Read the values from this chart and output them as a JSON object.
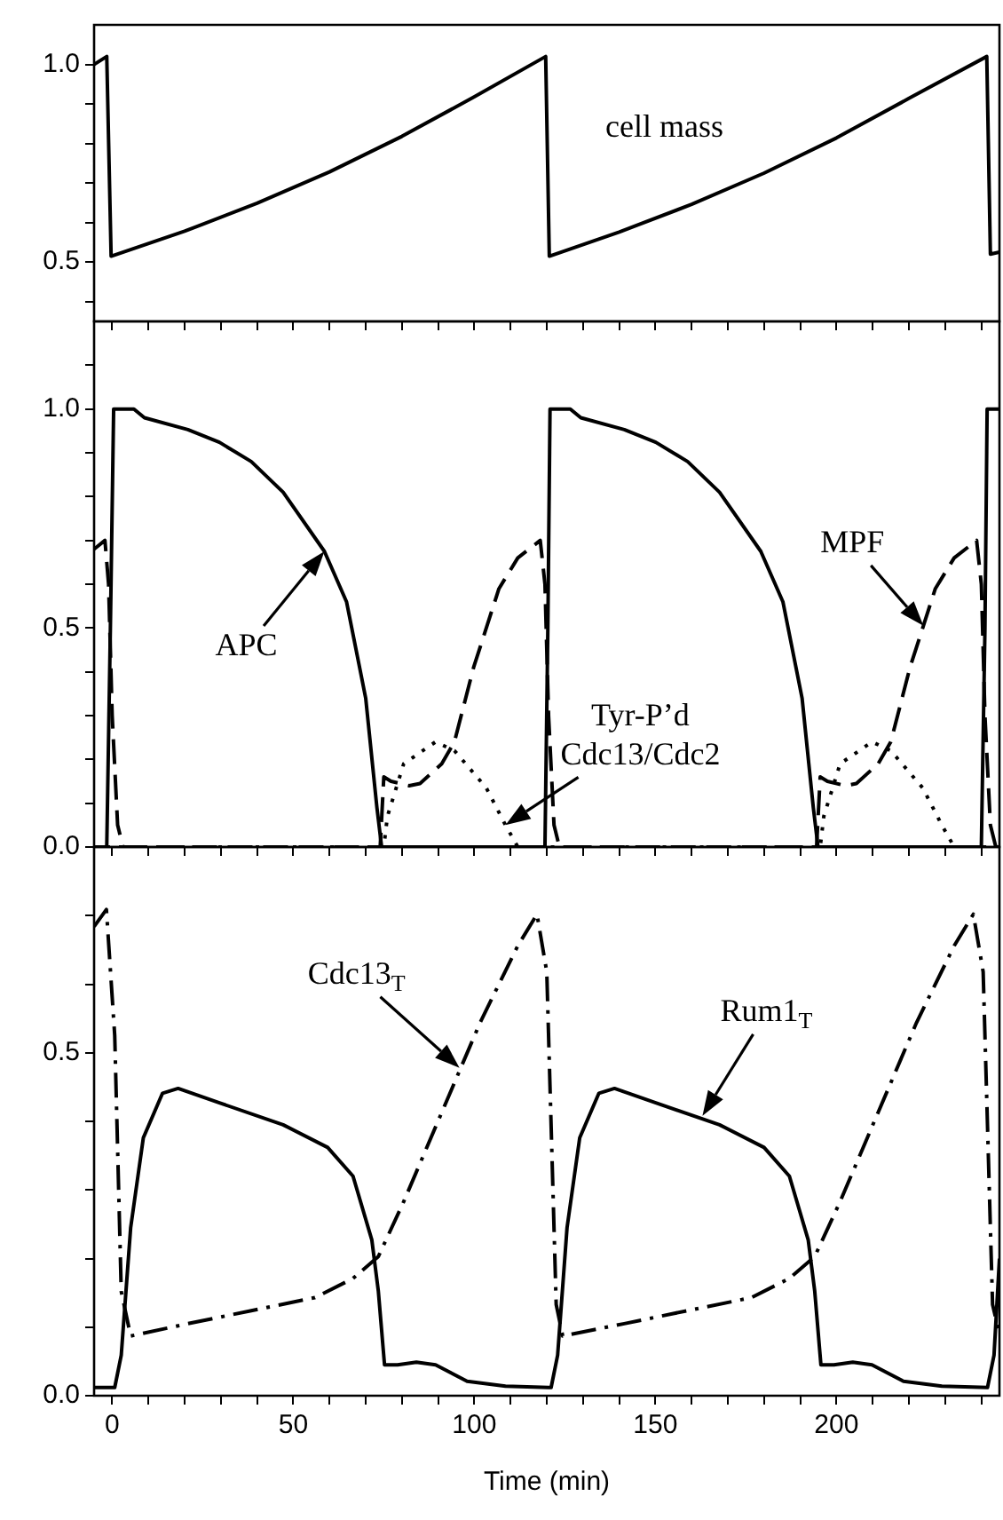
{
  "chart_data": [
    {
      "type": "line",
      "tick_labels": "y",
      "xlim": [
        -5,
        245
      ],
      "xticks": [
        0,
        50,
        100,
        150,
        200,
        {
          "value": 10,
          "label": null
        },
        {
          "value": 20,
          "label": null
        },
        {
          "value": 30,
          "label": null
        },
        {
          "value": 40,
          "label": null
        },
        {
          "value": 60,
          "label": null
        },
        {
          "value": 70,
          "label": null
        },
        {
          "value": 80,
          "label": null
        },
        {
          "value": 90,
          "label": null
        },
        {
          "value": 110,
          "label": null
        },
        {
          "value": 120,
          "label": null
        },
        {
          "value": 130,
          "label": null
        },
        {
          "value": 140,
          "label": null
        },
        {
          "value": 160,
          "label": null
        },
        {
          "value": 170,
          "label": null
        },
        {
          "value": 180,
          "label": null
        },
        {
          "value": 190,
          "label": null
        },
        {
          "value": 210,
          "label": null
        },
        {
          "value": 220,
          "label": null
        },
        {
          "value": 230,
          "label": null
        },
        {
          "value": 240,
          "label": null
        }
      ],
      "ylim": [
        0.35,
        1.1
      ],
      "yticks": [
        {
          "value": 0.5,
          "label": "0.5"
        },
        {
          "value": 1.0,
          "label": "1.0"
        },
        {
          "value": 0.4,
          "label": null
        },
        {
          "value": 0.6,
          "label": null
        },
        {
          "value": 0.7,
          "label": null
        },
        {
          "value": 0.8,
          "label": null
        },
        {
          "value": 0.9,
          "label": null
        }
      ],
      "series": [
        {
          "color": "#000000",
          "line_style": "solid",
          "x": [
            -5,
            -1.5,
            -0.3,
            20,
            40,
            60,
            80,
            100,
            119.7,
            120.7,
            140,
            160,
            180,
            200,
            220,
            241.5,
            242.5,
            245
          ],
          "values": [
            1.0,
            1.02,
            0.515,
            0.578,
            0.649,
            0.728,
            0.818,
            0.918,
            1.02,
            0.515,
            0.576,
            0.646,
            0.725,
            0.814,
            0.914,
            1.02,
            0.52,
            0.525
          ]
        }
      ],
      "annotations": [
        "cell mass"
      ]
    },
    {
      "type": "line",
      "tick_labels": "y",
      "xlim": [
        -5,
        245
      ],
      "xticks": [
        0,
        50,
        100,
        150,
        200,
        {
          "value": 10,
          "label": null
        },
        {
          "value": 20,
          "label": null
        },
        {
          "value": 30,
          "label": null
        },
        {
          "value": 40,
          "label": null
        },
        {
          "value": 60,
          "label": null
        },
        {
          "value": 70,
          "label": null
        },
        {
          "value": 80,
          "label": null
        },
        {
          "value": 90,
          "label": null
        },
        {
          "value": 110,
          "label": null
        },
        {
          "value": 120,
          "label": null
        },
        {
          "value": 130,
          "label": null
        },
        {
          "value": 140,
          "label": null
        },
        {
          "value": 160,
          "label": null
        },
        {
          "value": 170,
          "label": null
        },
        {
          "value": 180,
          "label": null
        },
        {
          "value": 190,
          "label": null
        },
        {
          "value": 210,
          "label": null
        },
        {
          "value": 220,
          "label": null
        },
        {
          "value": 230,
          "label": null
        },
        {
          "value": 240,
          "label": null
        }
      ],
      "ylim": [
        0,
        1.2
      ],
      "yticks": [
        {
          "value": 0,
          "label": "0.0"
        },
        {
          "value": 0.5,
          "label": "0.5"
        },
        {
          "value": 1.0,
          "label": "1.0"
        },
        {
          "value": 0.1,
          "label": null
        },
        {
          "value": 0.2,
          "label": null
        },
        {
          "value": 0.3,
          "label": null
        },
        {
          "value": 0.4,
          "label": null
        },
        {
          "value": 0.6,
          "label": null
        },
        {
          "value": 0.7,
          "label": null
        },
        {
          "value": 0.8,
          "label": null
        },
        {
          "value": 0.9,
          "label": null
        },
        {
          "value": 1.1,
          "label": null
        }
      ],
      "series": [
        {
          "color": "#000000",
          "line_style": "solid",
          "x": [
            -5,
            -1.5,
            -0.5,
            0.4,
            4.2,
            6,
            8.9,
            20.9,
            29.6,
            38.4,
            47.2,
            58.6,
            64.7,
            70,
            73.1,
            74.4,
            119.5,
            120.3,
            120.9,
            124.7,
            126.5,
            129.4,
            141.4,
            150.1,
            158.9,
            167.7,
            179.1,
            185.2,
            190.5,
            193.6,
            194.9,
            240,
            241,
            241.6,
            245
          ],
          "values": [
            0,
            0,
            0.5,
            1.0,
            1.0,
            1.0,
            0.98,
            0.953,
            0.924,
            0.88,
            0.81,
            0.675,
            0.56,
            0.34,
            0.09,
            0,
            0,
            0.5,
            1.0,
            1.0,
            1.0,
            0.98,
            0.953,
            0.924,
            0.88,
            0.81,
            0.675,
            0.56,
            0.34,
            0.09,
            0,
            0,
            0.5,
            1.0,
            1.0
          ]
        },
        {
          "color": "#000000",
          "line_style": "dashed",
          "x": [
            -5,
            -2,
            -1,
            0,
            1.5,
            3,
            74,
            75,
            77,
            82,
            85,
            91,
            94.5,
            99.8,
            106.8,
            112,
            118.2,
            119.5,
            120.5,
            122,
            123.5,
            194.5,
            195.5,
            197.5,
            202.5,
            205.5,
            211.5,
            215,
            220.3,
            227.3,
            232.5,
            238.7,
            240,
            241,
            242.5,
            244,
            245
          ],
          "values": [
            0.68,
            0.7,
            0.6,
            0.3,
            0.05,
            0,
            0,
            0.16,
            0.15,
            0.14,
            0.145,
            0.19,
            0.24,
            0.41,
            0.59,
            0.66,
            0.7,
            0.6,
            0.3,
            0.05,
            0,
            0,
            0.16,
            0.15,
            0.14,
            0.145,
            0.19,
            0.24,
            0.41,
            0.59,
            0.66,
            0.7,
            0.6,
            0.3,
            0.05,
            0,
            0
          ]
        },
        {
          "color": "#000000",
          "line_style": "dotted",
          "x": [
            -5,
            75,
            76,
            80.5,
            89.3,
            94.5,
            103.3,
            108.6,
            112,
            195.5,
            196.5,
            201,
            209.8,
            215,
            223.8,
            229.1,
            232.5,
            245
          ],
          "values": [
            0,
            0,
            0.07,
            0.19,
            0.24,
            0.22,
            0.135,
            0.05,
            0,
            0,
            0.07,
            0.19,
            0.24,
            0.22,
            0.135,
            0.05,
            0,
            0
          ]
        }
      ],
      "annotations": [
        {
          "text": "APC",
          "x": 58.6,
          "y": 0.675
        },
        {
          "text": "MPF",
          "x": 224,
          "y": 0.505
        },
        {
          "text": "Tyr-P’d\nCdc13/Cdc2",
          "x": 108.6,
          "y": 0.05
        }
      ]
    },
    {
      "type": "line",
      "xlim": [
        -5,
        245
      ],
      "xlabel": "Time (min)",
      "xticks": [
        0,
        50,
        100,
        150,
        200,
        {
          "value": 10,
          "label": null
        },
        {
          "value": 20,
          "label": null
        },
        {
          "value": 30,
          "label": null
        },
        {
          "value": 40,
          "label": null
        },
        {
          "value": 60,
          "label": null
        },
        {
          "value": 70,
          "label": null
        },
        {
          "value": 80,
          "label": null
        },
        {
          "value": 90,
          "label": null
        },
        {
          "value": 110,
          "label": null
        },
        {
          "value": 120,
          "label": null
        },
        {
          "value": 130,
          "label": null
        },
        {
          "value": 140,
          "label": null
        },
        {
          "value": 160,
          "label": null
        },
        {
          "value": 170,
          "label": null
        },
        {
          "value": 180,
          "label": null
        },
        {
          "value": 190,
          "label": null
        },
        {
          "value": 210,
          "label": null
        },
        {
          "value": 220,
          "label": null
        },
        {
          "value": 230,
          "label": null
        },
        {
          "value": 240,
          "label": null
        }
      ],
      "ylim": [
        0,
        0.8
      ],
      "yticks": [
        {
          "value": 0,
          "label": "0.0"
        },
        {
          "value": 0.5,
          "label": "0.5"
        },
        {
          "value": 0.1,
          "label": null
        },
        {
          "value": 0.2,
          "label": null
        },
        {
          "value": 0.3,
          "label": null
        },
        {
          "value": 0.4,
          "label": null
        },
        {
          "value": 0.6,
          "label": null
        },
        {
          "value": 0.7,
          "label": null
        }
      ],
      "series": [
        {
          "color": "#000000",
          "line_style": "dashdot",
          "x": [
            -5,
            -1.6,
            0.7,
            2.5,
            5.1,
            20.9,
            38.4,
            56,
            66.5,
            73.5,
            80.5,
            91,
            101.6,
            112,
            117.3,
            120,
            122.6,
            124.4,
            141.4,
            158.9,
            176.5,
            187,
            194,
            201,
            211.5,
            222.1,
            232.5,
            237.8,
            240.5,
            243.1,
            245
          ],
          "values": [
            0.684,
            0.709,
            0.525,
            0.152,
            0.087,
            0.105,
            0.124,
            0.143,
            0.171,
            0.203,
            0.283,
            0.413,
            0.544,
            0.656,
            0.702,
            0.618,
            0.133,
            0.087,
            0.105,
            0.124,
            0.143,
            0.171,
            0.203,
            0.283,
            0.413,
            0.544,
            0.656,
            0.702,
            0.618,
            0.133,
            0.09
          ]
        },
        {
          "color": "#000000",
          "line_style": "solid",
          "x": [
            -5,
            0.7,
            2.5,
            5.1,
            8.6,
            13.9,
            18.2,
            29.6,
            47.2,
            59.5,
            66.5,
            71.7,
            73.5,
            75.2,
            78.8,
            84,
            89.3,
            98,
            108.6,
            120.5,
            121.2,
            123,
            125.6,
            129.1,
            134.4,
            138.7,
            150.1,
            167.7,
            180,
            187,
            192.2,
            194,
            195.7,
            199.3,
            204.5,
            209.8,
            218.5,
            229.1,
            241.7,
            243.5,
            245
          ],
          "values": [
            0.012,
            0.012,
            0.059,
            0.245,
            0.376,
            0.441,
            0.448,
            0.427,
            0.395,
            0.362,
            0.32,
            0.227,
            0.152,
            0.045,
            0.045,
            0.049,
            0.045,
            0.021,
            0.014,
            0.012,
            0.012,
            0.059,
            0.245,
            0.376,
            0.441,
            0.448,
            0.427,
            0.395,
            0.362,
            0.32,
            0.227,
            0.152,
            0.045,
            0.045,
            0.049,
            0.045,
            0.021,
            0.014,
            0.012,
            0.059,
            0.2
          ]
        }
      ],
      "annotations": [
        {
          "text": "Cdc13$_{T}$",
          "x": 95.9,
          "y": 0.478
        },
        {
          "text": "Rum1$_{T}$",
          "x": 163,
          "y": 0.408
        }
      ]
    }
  ]
}
